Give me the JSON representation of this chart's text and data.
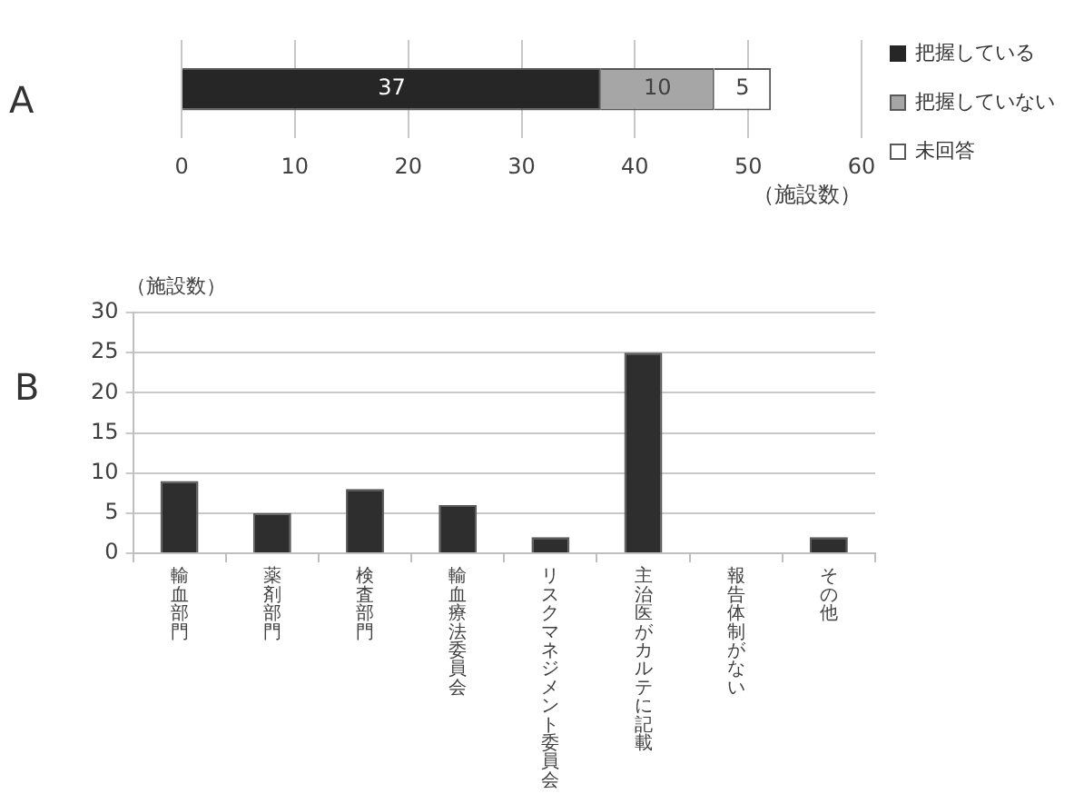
{
  "chart_data": [
    {
      "type": "bar",
      "title": "A",
      "orientation": "horizontal",
      "stacked": true,
      "categories": [
        null
      ],
      "series": [
        {
          "name": "把握している",
          "color": "#262626",
          "values": [
            37
          ]
        },
        {
          "name": "把握していない",
          "color": "#a6a6a6",
          "values": [
            10
          ]
        },
        {
          "name": "未回答",
          "color": "#ffffff",
          "values": [
            5
          ]
        }
      ],
      "xlabel": "（施設数）",
      "xlim": [
        0,
        60
      ],
      "xticks": [
        0,
        10,
        20,
        30,
        40,
        50,
        60
      ],
      "grid": "x",
      "legend": "right",
      "data_labels": true
    },
    {
      "type": "bar",
      "title": "B",
      "categories": [
        "輸血部門",
        "薬剤部門",
        "検査部門",
        "輸血療法委員会",
        "リスクマネジメント委員会",
        "主治医がカルテに記載",
        "報告体制がない",
        "その他"
      ],
      "values": [
        9,
        5,
        8,
        6,
        2,
        25,
        0,
        2
      ],
      "color": "#2e2e2e",
      "ylabel": "（施設数）",
      "ylim": [
        0,
        30
      ],
      "yticks": [
        0,
        5,
        10,
        15,
        20,
        25,
        30
      ],
      "grid": "y",
      "legend": false
    }
  ]
}
